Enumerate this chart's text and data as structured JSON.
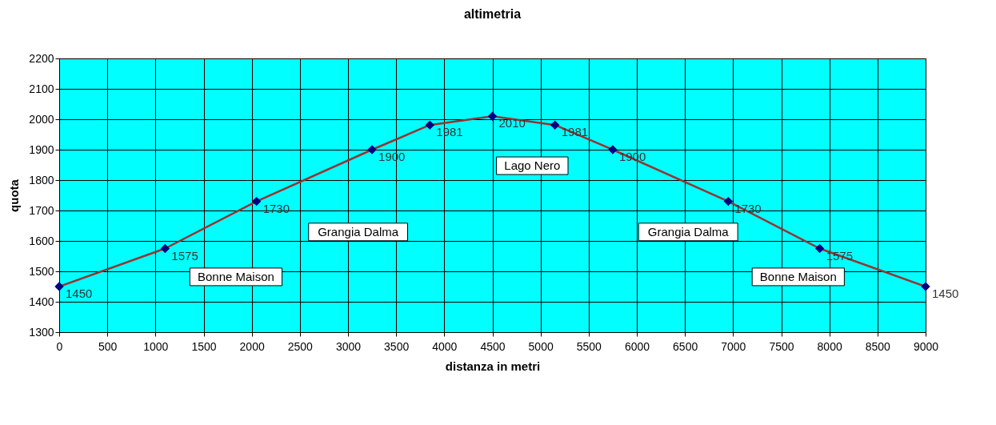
{
  "chart_data": {
    "type": "line",
    "title": "altimetria",
    "xlabel": "distanza in metri",
    "ylabel": "quota",
    "x": [
      0,
      1100,
      2050,
      3250,
      3850,
      4500,
      5150,
      5750,
      6950,
      7900,
      9000
    ],
    "series": [
      {
        "color": "#993333",
        "values": [
          1450,
          1575,
          1730,
          1900,
          1981,
          2010,
          1981,
          1900,
          1730,
          1575,
          1450
        ]
      }
    ],
    "xlim": [
      0,
      9000
    ],
    "xticks": [
      0,
      500,
      1000,
      1500,
      2000,
      2500,
      3000,
      3500,
      4000,
      4500,
      5000,
      5500,
      6000,
      6500,
      7000,
      7500,
      8000,
      8500,
      9000
    ],
    "ylim": [
      1300,
      2200
    ],
    "yticks": [
      1300,
      1400,
      1500,
      1600,
      1700,
      1800,
      1900,
      2000,
      2100,
      2200
    ],
    "grid": true,
    "marker": "diamond",
    "data_labels": true,
    "annotations": [
      "Bonne Maison",
      "Grangia Dalma",
      "Lago Nero",
      "Grangia Dalma",
      "Bonne Maison"
    ]
  }
}
